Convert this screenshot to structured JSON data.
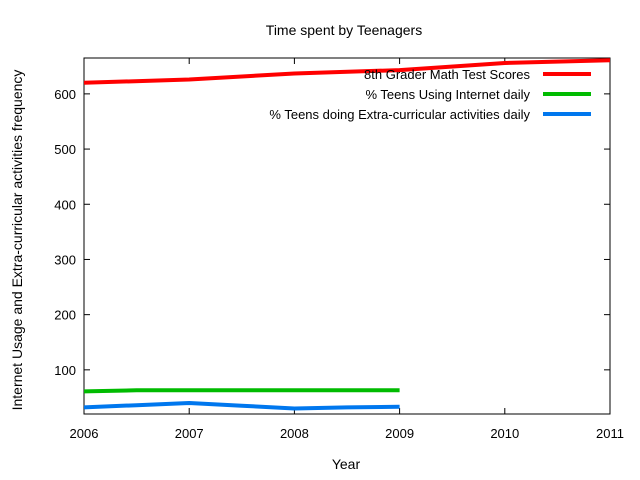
{
  "chart_data": {
    "type": "line",
    "title": "Time spent by Teenagers",
    "xlabel": "Year",
    "ylabel": "Internet Usage and Extra-curricular activities frequency",
    "xlim": [
      2006,
      2011
    ],
    "ylim": [
      20,
      665
    ],
    "x_ticks": [
      2006,
      2007,
      2008,
      2009,
      2010,
      2011
    ],
    "y_ticks": [
      100,
      200,
      300,
      400,
      500,
      600
    ],
    "grid": false,
    "legend_position": "top-right",
    "series": [
      {
        "name": "8th Grader Math Test Scores",
        "color": "#ff0000",
        "points": [
          [
            2006,
            620
          ],
          [
            2007,
            626
          ],
          [
            2008,
            637
          ],
          [
            2009,
            643
          ],
          [
            2010,
            656
          ],
          [
            2011,
            661
          ]
        ]
      },
      {
        "name": "% Teens Using Internet daily",
        "color": "#00bb00",
        "points": [
          [
            2006,
            61
          ],
          [
            2006.5,
            63
          ],
          [
            2007,
            63
          ],
          [
            2008,
            63
          ],
          [
            2009,
            63
          ]
        ]
      },
      {
        "name": "% Teens doing Extra-curricular activities daily",
        "color": "#0077ee",
        "points": [
          [
            2006,
            32
          ],
          [
            2006.5,
            36
          ],
          [
            2007,
            40
          ],
          [
            2007.5,
            35
          ],
          [
            2008,
            30
          ],
          [
            2008.5,
            32
          ],
          [
            2009,
            33
          ]
        ]
      }
    ]
  }
}
